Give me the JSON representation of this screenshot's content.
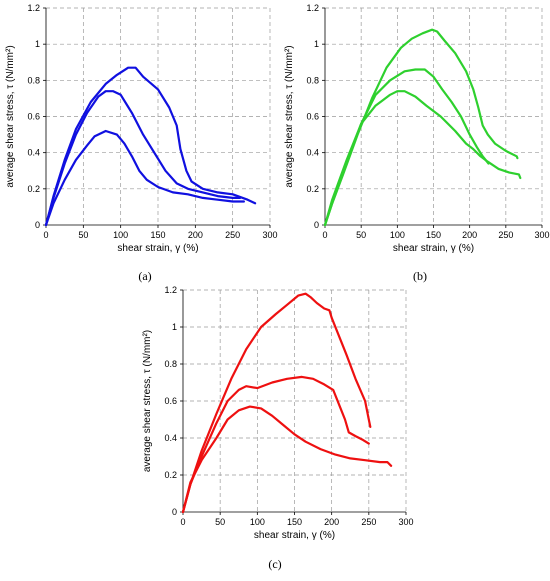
{
  "chart_data": [
    {
      "type": "line",
      "panel_label": "(a)",
      "xlabel": "shear strain, γ (%)",
      "ylabel": "average shear stress, τ (N/mm²)",
      "xlim": [
        0,
        300
      ],
      "ylim": [
        0,
        1.2
      ],
      "xticks": [
        0,
        50,
        100,
        150,
        200,
        250,
        300
      ],
      "yticks": [
        0,
        0.2,
        0.4,
        0.6,
        0.8,
        1,
        1.2
      ],
      "grid": true,
      "color": "#1010e0",
      "series": [
        {
          "points": [
            [
              0,
              0
            ],
            [
              10,
              0.16
            ],
            [
              25,
              0.36
            ],
            [
              40,
              0.53
            ],
            [
              60,
              0.68
            ],
            [
              80,
              0.78
            ],
            [
              95,
              0.83
            ],
            [
              110,
              0.87
            ],
            [
              120,
              0.87
            ],
            [
              130,
              0.82
            ],
            [
              150,
              0.75
            ],
            [
              165,
              0.65
            ],
            [
              175,
              0.55
            ],
            [
              180,
              0.42
            ],
            [
              188,
              0.3
            ],
            [
              195,
              0.24
            ],
            [
              210,
              0.2
            ],
            [
              230,
              0.18
            ],
            [
              250,
              0.17
            ],
            [
              270,
              0.14
            ],
            [
              280,
              0.12
            ]
          ]
        },
        {
          "points": [
            [
              0,
              0
            ],
            [
              10,
              0.15
            ],
            [
              25,
              0.34
            ],
            [
              40,
              0.5
            ],
            [
              55,
              0.62
            ],
            [
              70,
              0.71
            ],
            [
              80,
              0.74
            ],
            [
              90,
              0.74
            ],
            [
              100,
              0.72
            ],
            [
              115,
              0.62
            ],
            [
              130,
              0.5
            ],
            [
              145,
              0.4
            ],
            [
              160,
              0.3
            ],
            [
              175,
              0.23
            ],
            [
              190,
              0.2
            ],
            [
              210,
              0.18
            ],
            [
              230,
              0.16
            ],
            [
              250,
              0.15
            ],
            [
              260,
              0.15
            ]
          ]
        },
        {
          "points": [
            [
              0,
              0
            ],
            [
              10,
              0.12
            ],
            [
              25,
              0.25
            ],
            [
              40,
              0.36
            ],
            [
              55,
              0.44
            ],
            [
              65,
              0.49
            ],
            [
              80,
              0.52
            ],
            [
              95,
              0.5
            ],
            [
              105,
              0.45
            ],
            [
              115,
              0.38
            ],
            [
              125,
              0.3
            ],
            [
              135,
              0.25
            ],
            [
              150,
              0.21
            ],
            [
              170,
              0.18
            ],
            [
              190,
              0.17
            ],
            [
              210,
              0.15
            ],
            [
              230,
              0.14
            ],
            [
              250,
              0.13
            ],
            [
              265,
              0.13
            ]
          ]
        }
      ]
    },
    {
      "type": "line",
      "panel_label": "(b)",
      "xlabel": "shear strain, γ (%)",
      "ylabel": "average shear stress, τ (N/mm²)",
      "xlim": [
        0,
        300
      ],
      "ylim": [
        0,
        1.2
      ],
      "xticks": [
        0,
        50,
        100,
        150,
        200,
        250,
        300
      ],
      "yticks": [
        0,
        0.2,
        0.4,
        0.6,
        0.8,
        1,
        1.2
      ],
      "grid": true,
      "color": "#2ed02e",
      "series": [
        {
          "points": [
            [
              0,
              0
            ],
            [
              10,
              0.12
            ],
            [
              25,
              0.28
            ],
            [
              45,
              0.5
            ],
            [
              65,
              0.7
            ],
            [
              85,
              0.87
            ],
            [
              105,
              0.98
            ],
            [
              120,
              1.03
            ],
            [
              135,
              1.06
            ],
            [
              148,
              1.08
            ],
            [
              155,
              1.07
            ],
            [
              165,
              1.02
            ],
            [
              180,
              0.95
            ],
            [
              195,
              0.85
            ],
            [
              205,
              0.75
            ],
            [
              212,
              0.65
            ],
            [
              218,
              0.55
            ],
            [
              225,
              0.5
            ],
            [
              235,
              0.45
            ],
            [
              250,
              0.41
            ],
            [
              265,
              0.38
            ],
            [
              266,
              0.37
            ]
          ]
        },
        {
          "points": [
            [
              0,
              0
            ],
            [
              10,
              0.12
            ],
            [
              30,
              0.34
            ],
            [
              50,
              0.56
            ],
            [
              70,
              0.72
            ],
            [
              90,
              0.8
            ],
            [
              110,
              0.85
            ],
            [
              125,
              0.86
            ],
            [
              138,
              0.86
            ],
            [
              150,
              0.82
            ],
            [
              162,
              0.75
            ],
            [
              175,
              0.68
            ],
            [
              188,
              0.6
            ],
            [
              200,
              0.5
            ],
            [
              210,
              0.43
            ],
            [
              218,
              0.38
            ],
            [
              226,
              0.34
            ]
          ]
        },
        {
          "points": [
            [
              0,
              0
            ],
            [
              10,
              0.14
            ],
            [
              30,
              0.36
            ],
            [
              50,
              0.56
            ],
            [
              70,
              0.66
            ],
            [
              90,
              0.72
            ],
            [
              100,
              0.74
            ],
            [
              110,
              0.74
            ],
            [
              125,
              0.71
            ],
            [
              140,
              0.66
            ],
            [
              160,
              0.6
            ],
            [
              180,
              0.52
            ],
            [
              195,
              0.45
            ],
            [
              205,
              0.42
            ],
            [
              215,
              0.38
            ],
            [
              225,
              0.35
            ],
            [
              240,
              0.31
            ],
            [
              255,
              0.29
            ],
            [
              268,
              0.28
            ],
            [
              270,
              0.26
            ]
          ]
        }
      ]
    },
    {
      "type": "line",
      "panel_label": "(c)",
      "xlabel": "shear strain, γ (%)",
      "ylabel": "average shear stress, τ (N/mm²)",
      "xlim": [
        0,
        300
      ],
      "ylim": [
        0,
        1.2
      ],
      "xticks": [
        0,
        50,
        100,
        150,
        200,
        250,
        300
      ],
      "yticks": [
        0,
        0.2,
        0.4,
        0.6,
        0.8,
        1,
        1.2
      ],
      "grid": true,
      "color": "#ee1010",
      "series": [
        {
          "points": [
            [
              0,
              0
            ],
            [
              10,
              0.15
            ],
            [
              25,
              0.33
            ],
            [
              45,
              0.53
            ],
            [
              65,
              0.72
            ],
            [
              85,
              0.88
            ],
            [
              105,
              1.0
            ],
            [
              125,
              1.07
            ],
            [
              140,
              1.12
            ],
            [
              155,
              1.17
            ],
            [
              165,
              1.18
            ],
            [
              172,
              1.16
            ],
            [
              180,
              1.13
            ],
            [
              190,
              1.1
            ],
            [
              197,
              1.09
            ],
            [
              200,
              1.05
            ],
            [
              210,
              0.95
            ],
            [
              220,
              0.85
            ],
            [
              232,
              0.72
            ],
            [
              245,
              0.6
            ],
            [
              250,
              0.5
            ],
            [
              252,
              0.46
            ]
          ]
        },
        {
          "points": [
            [
              0,
              0
            ],
            [
              10,
              0.15
            ],
            [
              25,
              0.3
            ],
            [
              45,
              0.48
            ],
            [
              60,
              0.6
            ],
            [
              75,
              0.66
            ],
            [
              85,
              0.68
            ],
            [
              100,
              0.67
            ],
            [
              120,
              0.7
            ],
            [
              140,
              0.72
            ],
            [
              160,
              0.73
            ],
            [
              175,
              0.72
            ],
            [
              190,
              0.69
            ],
            [
              202,
              0.66
            ],
            [
              210,
              0.58
            ],
            [
              218,
              0.5
            ],
            [
              223,
              0.43
            ],
            [
              232,
              0.41
            ],
            [
              242,
              0.39
            ],
            [
              250,
              0.37
            ]
          ]
        },
        {
          "points": [
            [
              0,
              0
            ],
            [
              10,
              0.16
            ],
            [
              25,
              0.28
            ],
            [
              45,
              0.4
            ],
            [
              60,
              0.5
            ],
            [
              75,
              0.55
            ],
            [
              90,
              0.57
            ],
            [
              105,
              0.56
            ],
            [
              120,
              0.52
            ],
            [
              135,
              0.47
            ],
            [
              150,
              0.42
            ],
            [
              165,
              0.38
            ],
            [
              185,
              0.34
            ],
            [
              205,
              0.31
            ],
            [
              225,
              0.29
            ],
            [
              245,
              0.28
            ],
            [
              265,
              0.27
            ],
            [
              275,
              0.27
            ],
            [
              280,
              0.25
            ]
          ]
        }
      ]
    }
  ]
}
